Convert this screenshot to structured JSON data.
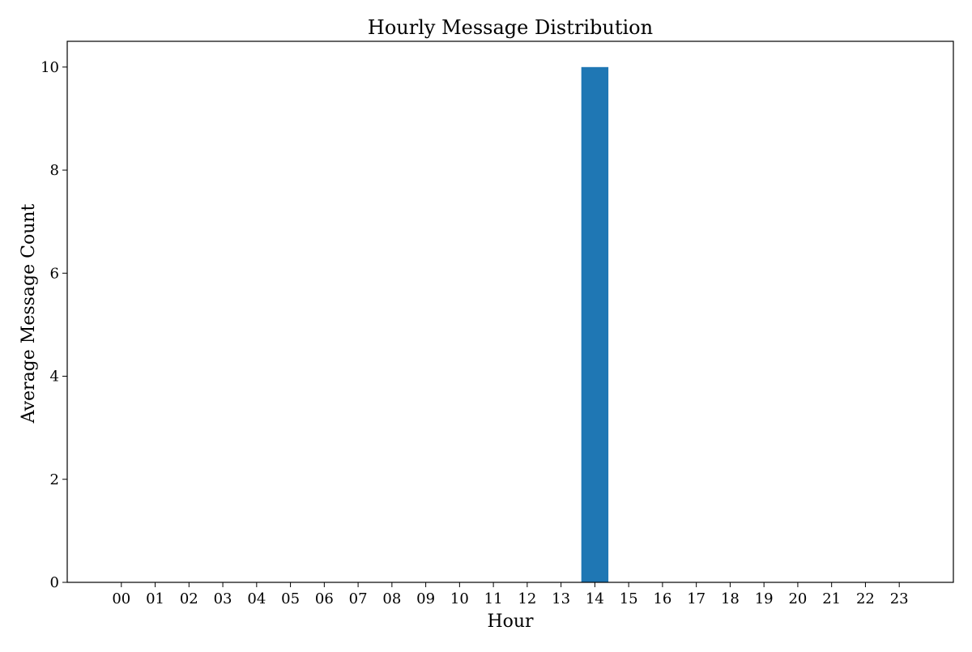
{
  "chart_data": {
    "type": "bar",
    "title": "Hourly Message Distribution",
    "xlabel": "Hour",
    "ylabel": "Average Message Count",
    "categories": [
      "00",
      "01",
      "02",
      "03",
      "04",
      "05",
      "06",
      "07",
      "08",
      "09",
      "10",
      "11",
      "12",
      "13",
      "14",
      "15",
      "16",
      "17",
      "18",
      "19",
      "20",
      "21",
      "22",
      "23"
    ],
    "values": [
      0,
      0,
      0,
      0,
      0,
      0,
      0,
      0,
      0,
      0,
      0,
      0,
      0,
      0,
      10,
      0,
      0,
      0,
      0,
      0,
      0,
      0,
      0,
      0
    ],
    "ylim": [
      0,
      10.5
    ],
    "yticks": [
      0,
      2,
      4,
      6,
      8,
      10
    ],
    "bar_color": "#1f77b4",
    "grid": false,
    "legend": "none"
  }
}
